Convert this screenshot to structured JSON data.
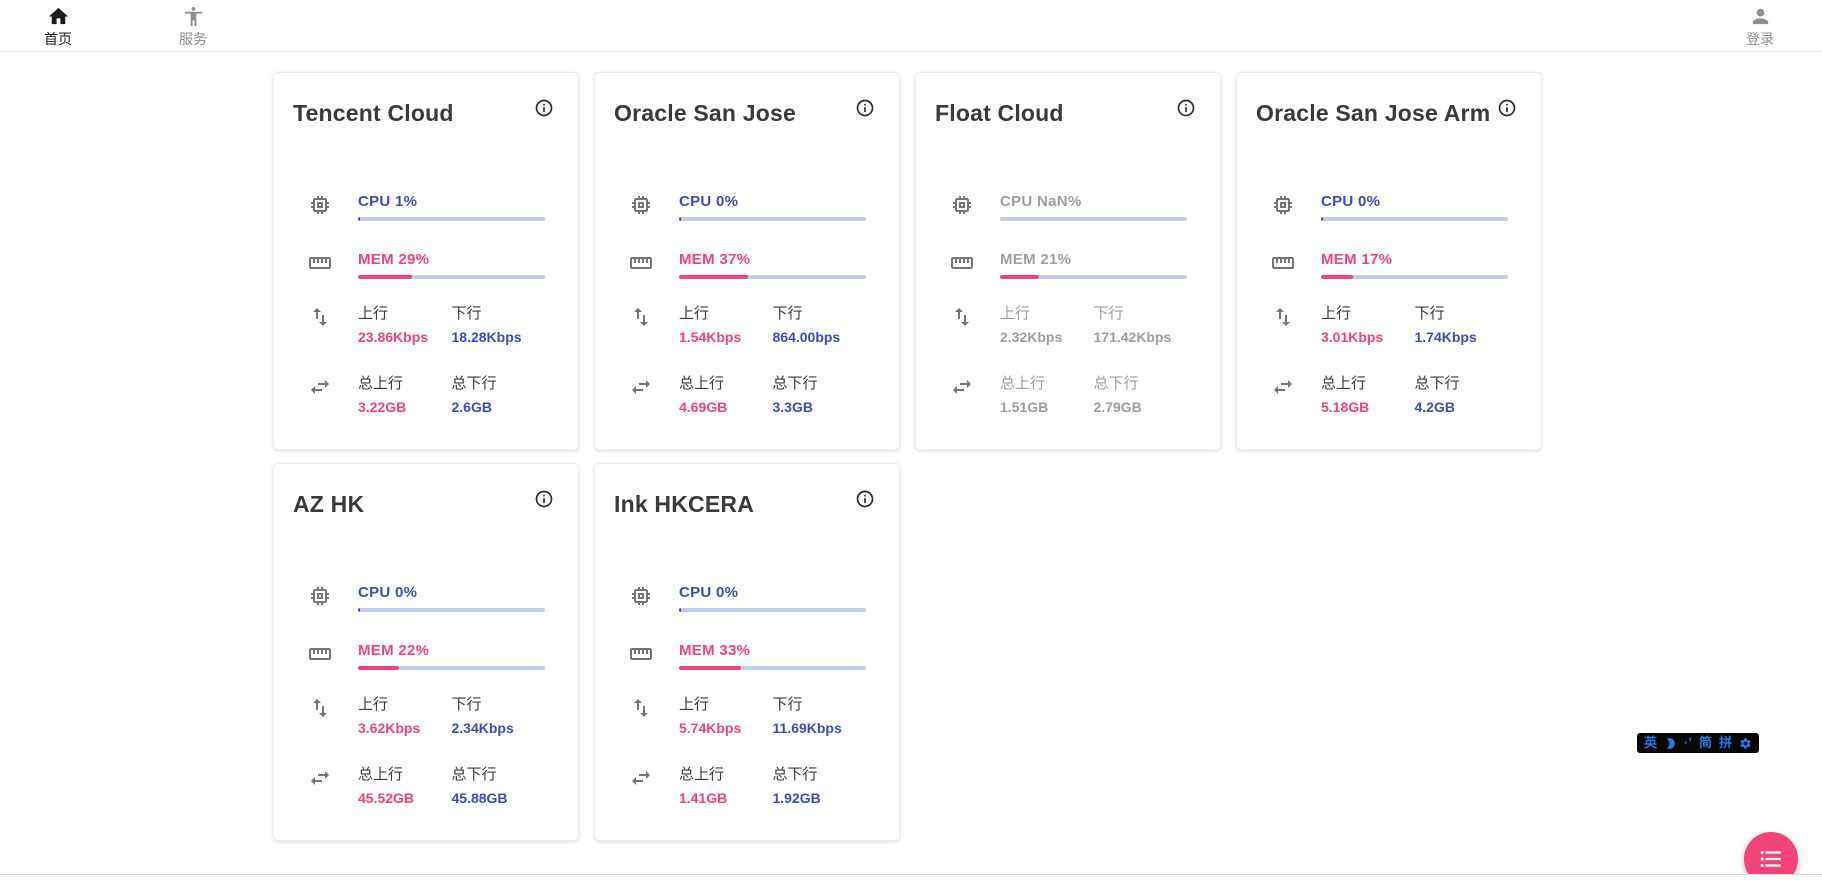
{
  "header": {
    "nav_items": [
      {
        "label": "首页",
        "icon": "home-icon",
        "active": true
      },
      {
        "label": "服务",
        "icon": "accessibility-icon",
        "active": false
      }
    ],
    "login": {
      "label": "登录",
      "icon": "person-icon"
    }
  },
  "labels": {
    "up": "上行",
    "down": "下行",
    "total_up": "总上行",
    "total_down": "总下行"
  },
  "cards": [
    {
      "name": "Tencent Cloud",
      "online": true,
      "cpu": {
        "label": "CPU 1%",
        "pct": 1
      },
      "mem": {
        "label": "MEM 29%",
        "pct": 29
      },
      "net": {
        "up": "23.86Kbps",
        "down": "18.28Kbps"
      },
      "total": {
        "up": "3.22GB",
        "down": "2.6GB"
      }
    },
    {
      "name": "Oracle San Jose",
      "online": true,
      "cpu": {
        "label": "CPU 0%",
        "pct": 0
      },
      "mem": {
        "label": "MEM 37%",
        "pct": 37
      },
      "net": {
        "up": "1.54Kbps",
        "down": "864.00bps"
      },
      "total": {
        "up": "4.69GB",
        "down": "3.3GB"
      }
    },
    {
      "name": "Float Cloud",
      "online": false,
      "cpu": {
        "label": "CPU NaN%",
        "pct": null
      },
      "mem": {
        "label": "MEM 21%",
        "pct": 21
      },
      "net": {
        "up": "2.32Kbps",
        "down": "171.42Kbps"
      },
      "total": {
        "up": "1.51GB",
        "down": "2.79GB"
      }
    },
    {
      "name": "Oracle San Jose Arm",
      "online": true,
      "cpu": {
        "label": "CPU 0%",
        "pct": 0
      },
      "mem": {
        "label": "MEM 17%",
        "pct": 17
      },
      "net": {
        "up": "3.01Kbps",
        "down": "1.74Kbps"
      },
      "total": {
        "up": "5.18GB",
        "down": "4.2GB"
      }
    },
    {
      "name": "AZ HK",
      "online": true,
      "cpu": {
        "label": "CPU 0%",
        "pct": 0
      },
      "mem": {
        "label": "MEM 22%",
        "pct": 22
      },
      "net": {
        "up": "3.62Kbps",
        "down": "2.34Kbps"
      },
      "total": {
        "up": "45.52GB",
        "down": "45.88GB"
      }
    },
    {
      "name": "Ink HKCERA",
      "online": true,
      "cpu": {
        "label": "CPU 0%",
        "pct": 0
      },
      "mem": {
        "label": "MEM 33%",
        "pct": 33
      },
      "net": {
        "up": "5.74Kbps",
        "down": "11.69Kbps"
      },
      "total": {
        "up": "1.41GB",
        "down": "1.92GB"
      }
    }
  ],
  "ime_toolbar": {
    "english": "英",
    "punctuation": "·’",
    "simplified": "简",
    "pinyin": "拼"
  },
  "colors": {
    "accent_blue": "#3d4db7",
    "accent_pink": "#f0437f",
    "bar_track": "#c7cbea",
    "offline_gray": "#9e9e9e",
    "fab_pink": "#f3437b"
  }
}
